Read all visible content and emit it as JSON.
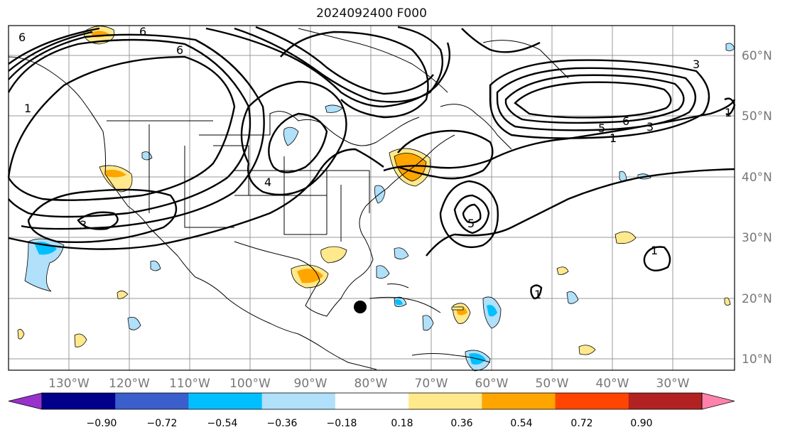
{
  "title": "2024092400 F000",
  "lat_labels": [
    "60°N",
    "50°N",
    "40°N",
    "30°N",
    "20°N",
    "10°N"
  ],
  "lon_labels": [
    "130°W",
    "120°W",
    "110°W",
    "100°W",
    "90°W",
    "80°W",
    "70°W",
    "60°W",
    "50°W",
    "40°W",
    "30°W"
  ],
  "colorbar": {
    "ticks": [
      "−0.90",
      "−0.72",
      "−0.54",
      "−0.36",
      "−0.18",
      "0.18",
      "0.36",
      "0.54",
      "0.72",
      "0.90"
    ],
    "colors": [
      "#9932cc",
      "#00008b",
      "#3a5fcd",
      "#00bfff",
      "#b0e0fa",
      "#ffffff",
      "#ffe98c",
      "#ffa500",
      "#ff4500",
      "#b22222",
      "#ff82ab"
    ]
  },
  "contour_labels": [
    "6",
    "6",
    "6",
    "1",
    "3",
    "4",
    "1",
    "5",
    "6",
    "3",
    "1",
    "5",
    "1",
    "3",
    "1"
  ]
}
